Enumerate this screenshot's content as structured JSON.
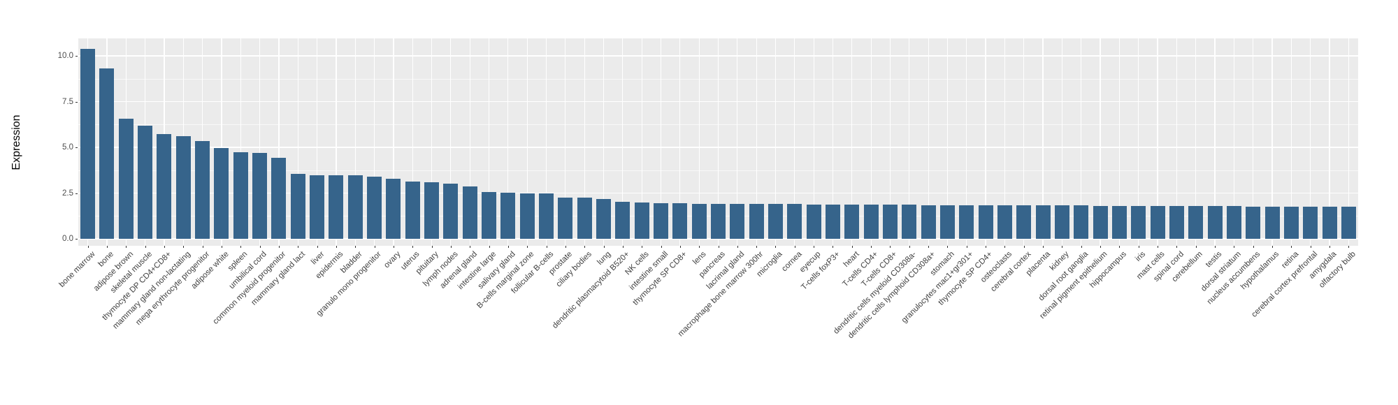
{
  "chart_data": {
    "type": "bar",
    "title": "",
    "xlabel": "",
    "ylabel": "Expression",
    "ylim": [
      0,
      10.95
    ],
    "yticks": [
      0.0,
      2.5,
      5.0,
      7.5,
      10.0
    ],
    "ytick_labels": [
      "0.0",
      "2.5",
      "5.0",
      "7.5",
      "10.0"
    ],
    "minor_gridlines": [
      1.25,
      3.75,
      6.25,
      8.75
    ],
    "grid": true,
    "legend_position": "none",
    "bar_color": "#36648B",
    "panel_background": "#EBEBEB",
    "gridline_color": "#FFFFFF",
    "categories": [
      "bone marrow",
      "bone",
      "adipose brown",
      "skeletal muscle",
      "thymocyte DP CD4+CD8+",
      "mammary gland non-lactating",
      "mega erythrocyte progenitor",
      "adipose white",
      "spleen",
      "umbilical cord",
      "common myeloid progenitor",
      "mammary gland lact",
      "liver",
      "epidermis",
      "bladder",
      "granulo mono progenitor",
      "ovary",
      "uterus",
      "pituitary",
      "lymph nodes",
      "adrenal gland",
      "intestine large",
      "salivary gland",
      "B-cells marginal zone",
      "follicular B-cells",
      "prostate",
      "ciliary bodies",
      "lung",
      "dendritic plasmacytoid B520+",
      "NK cells",
      "intestine small",
      "thymocyte SP CD8+",
      "lens",
      "pancreas",
      "lacrimal gland",
      "macrophage bone marrow 300hr",
      "microglia",
      "cornea",
      "eyecup",
      "T-cells foxP3+",
      "heart",
      "T-cells CD4+",
      "T-cells CD8+",
      "dendritic cells myeloid CD308a-",
      "dendritic cells lymphoid CD308a+",
      "stomach",
      "granulocytes mac1+gr301+",
      "thymocyte SP CD4+",
      "osteoclasts",
      "cerebral cortex",
      "placenta",
      "kidney",
      "dorsal root ganglia",
      "retinal pigment epithelium",
      "hippocampus",
      "iris",
      "mast cells",
      "spinal cord",
      "cerebellum",
      "testis",
      "dorsal striatum",
      "nucleus accumbens",
      "hypothalamus",
      "retina",
      "cerebral cortex prefrontal",
      "amygdala",
      "olfactory bulb"
    ],
    "values": [
      10.4,
      9.3,
      6.55,
      6.2,
      5.72,
      5.6,
      5.33,
      4.95,
      4.75,
      4.68,
      4.42,
      3.54,
      3.48,
      3.47,
      3.46,
      3.41,
      3.28,
      3.13,
      3.09,
      3.0,
      2.86,
      2.55,
      2.52,
      2.5,
      2.48,
      2.27,
      2.24,
      2.18,
      2.03,
      1.98,
      1.95,
      1.93,
      1.92,
      1.91,
      1.9,
      1.9,
      1.89,
      1.89,
      1.88,
      1.88,
      1.87,
      1.87,
      1.86,
      1.86,
      1.85,
      1.85,
      1.84,
      1.84,
      1.84,
      1.83,
      1.83,
      1.82,
      1.82,
      1.81,
      1.81,
      1.8,
      1.8,
      1.79,
      1.79,
      1.78,
      1.78,
      1.77,
      1.77,
      1.76,
      1.76,
      1.75,
      1.75
    ]
  }
}
